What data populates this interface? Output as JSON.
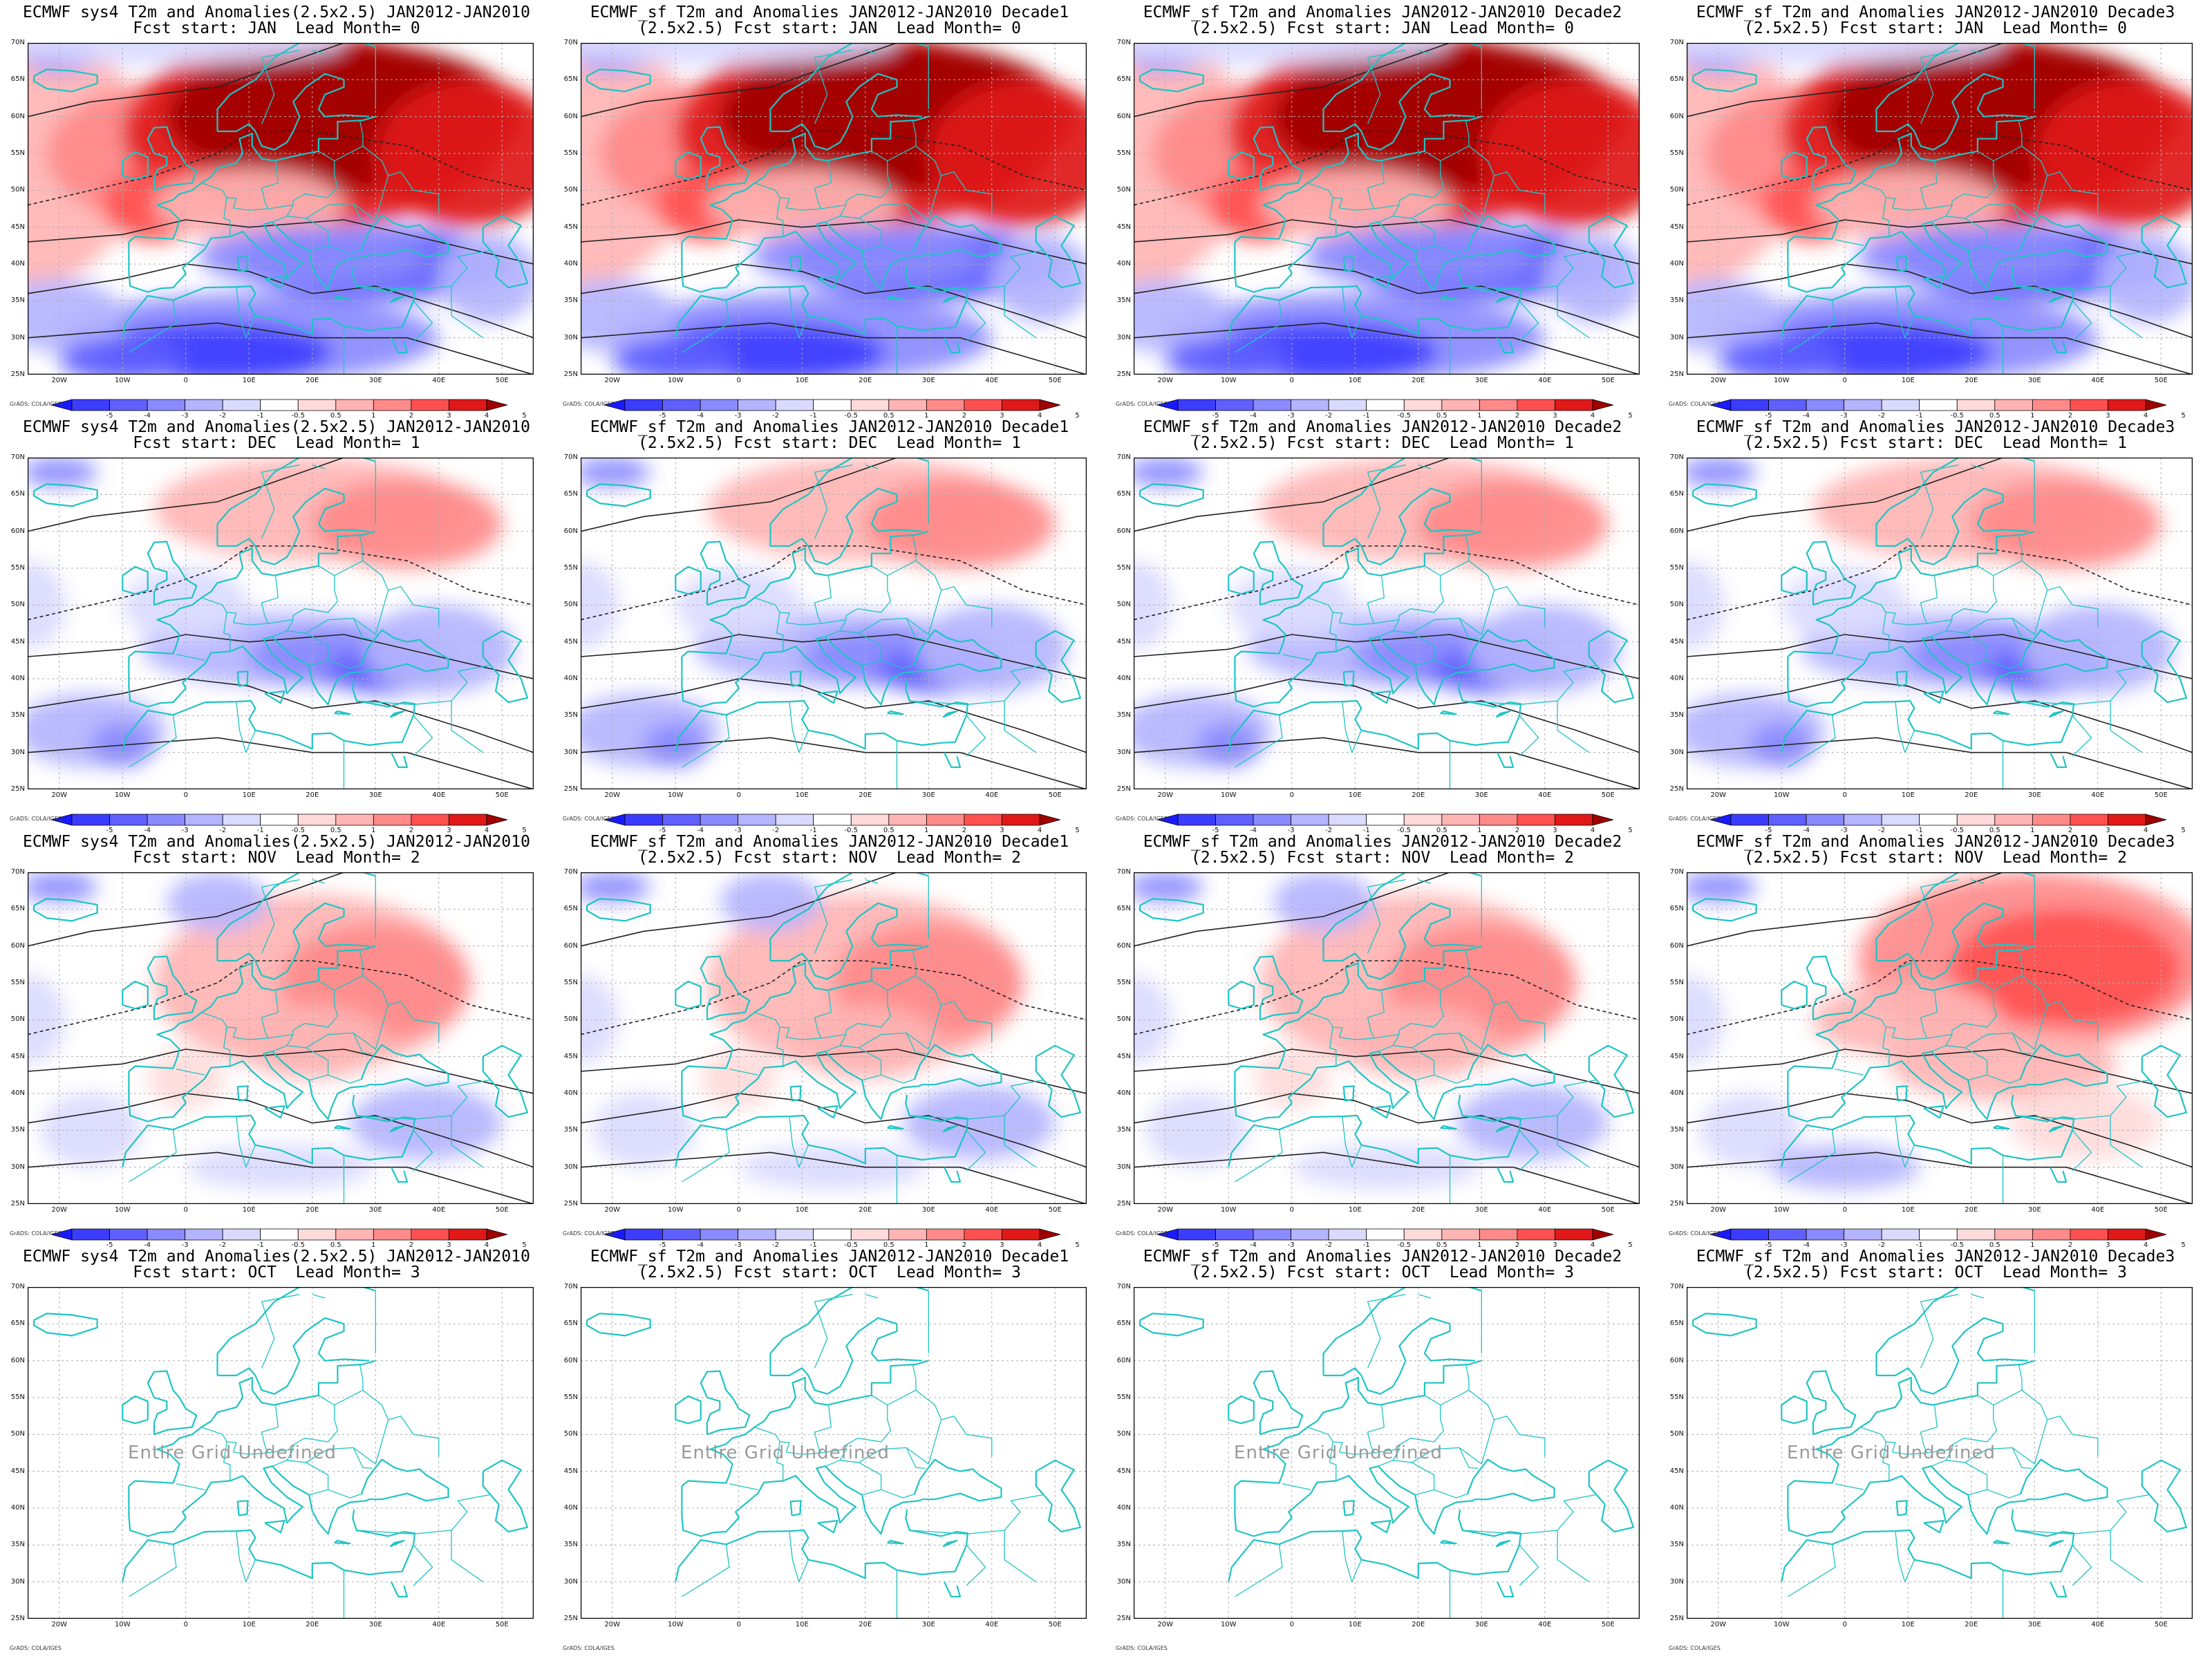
{
  "titles": [
    [
      "ECMWF sys4 T2m and Anomalies(2.5x2.5) JAN2012-JAN2010",
      "Fcst start: JAN  Lead Month= 0"
    ],
    [
      "ECMWF_sf T2m and Anomalies JAN2012-JAN2010 Decade1",
      "(2.5x2.5) Fcst start: JAN  Lead Month= 0"
    ],
    [
      "ECMWF_sf T2m and Anomalies JAN2012-JAN2010 Decade2",
      "(2.5x2.5) Fcst start: JAN  Lead Month= 0"
    ],
    [
      "ECMWF_sf T2m and Anomalies JAN2012-JAN2010 Decade3",
      "(2.5x2.5) Fcst start: JAN  Lead Month= 0"
    ],
    [
      "ECMWF sys4 T2m and Anomalies(2.5x2.5) JAN2012-JAN2010",
      "Fcst start: DEC  Lead Month= 1"
    ],
    [
      "ECMWF_sf T2m and Anomalies JAN2012-JAN2010 Decade1",
      "(2.5x2.5) Fcst start: DEC  Lead Month= 1"
    ],
    [
      "ECMWF_sf T2m and Anomalies JAN2012-JAN2010 Decade2",
      "(2.5x2.5) Fcst start: DEC  Lead Month= 1"
    ],
    [
      "ECMWF_sf T2m and Anomalies JAN2012-JAN2010 Decade3",
      "(2.5x2.5) Fcst start: DEC  Lead Month= 1"
    ],
    [
      "ECMWF sys4 T2m and Anomalies(2.5x2.5) JAN2012-JAN2010",
      "Fcst start: NOV  Lead Month= 2"
    ],
    [
      "ECMWF_sf T2m and Anomalies JAN2012-JAN2010 Decade1",
      "(2.5x2.5) Fcst start: NOV  Lead Month= 2"
    ],
    [
      "ECMWF_sf T2m and Anomalies JAN2012-JAN2010 Decade2",
      "(2.5x2.5) Fcst start: NOV  Lead Month= 2"
    ],
    [
      "ECMWF_sf T2m and Anomalies JAN2012-JAN2010 Decade3",
      "(2.5x2.5) Fcst start: NOV  Lead Month= 2"
    ],
    [
      "ECMWF sys4 T2m and Anomalies(2.5x2.5) JAN2012-JAN2010",
      "Fcst start: OCT  Lead Month= 3"
    ],
    [
      "ECMWF_sf T2m and Anomalies JAN2012-JAN2010 Decade1",
      "(2.5x2.5) Fcst start: OCT  Lead Month= 3"
    ],
    [
      "ECMWF_sf T2m and Anomalies JAN2012-JAN2010 Decade2",
      "(2.5x2.5) Fcst start: OCT  Lead Month= 3"
    ],
    [
      "ECMWF_sf T2m and Anomalies JAN2012-JAN2010 Decade3",
      "(2.5x2.5) Fcst start: OCT  Lead Month= 3"
    ]
  ],
  "lat_labels": [
    "70N",
    "65N",
    "60N",
    "55N",
    "50N",
    "45N",
    "40N",
    "35N",
    "30N",
    "25N"
  ],
  "lon_labels": [
    "20W",
    "10W",
    "0",
    "10E",
    "20E",
    "30E",
    "40E",
    "50E"
  ],
  "colorbar_labels": [
    "-5",
    "-4",
    "-3",
    "-2",
    "-1",
    "-0.5",
    "0.5",
    "1",
    "2",
    "3",
    "4",
    "5"
  ],
  "colorbar_colors": [
    "#1a1aff",
    "#3c3cff",
    "#6060ff",
    "#8a8aff",
    "#b4b4ff",
    "#dadaff",
    "#ffffff",
    "#ffdada",
    "#ffb4b4",
    "#ff8a8a",
    "#ff5050",
    "#e01818",
    "#a00000"
  ],
  "credit": "GrADS: COLA/IGES",
  "undefined_text": "Entire Grid Undefined",
  "anomaly_state": [
    "strong",
    "strong",
    "strong",
    "strong",
    "moderate",
    "moderate",
    "moderate",
    "moderate",
    "warm",
    "warm",
    "warm",
    "warmstrong",
    "undefined",
    "undefined",
    "undefined",
    "undefined"
  ]
}
